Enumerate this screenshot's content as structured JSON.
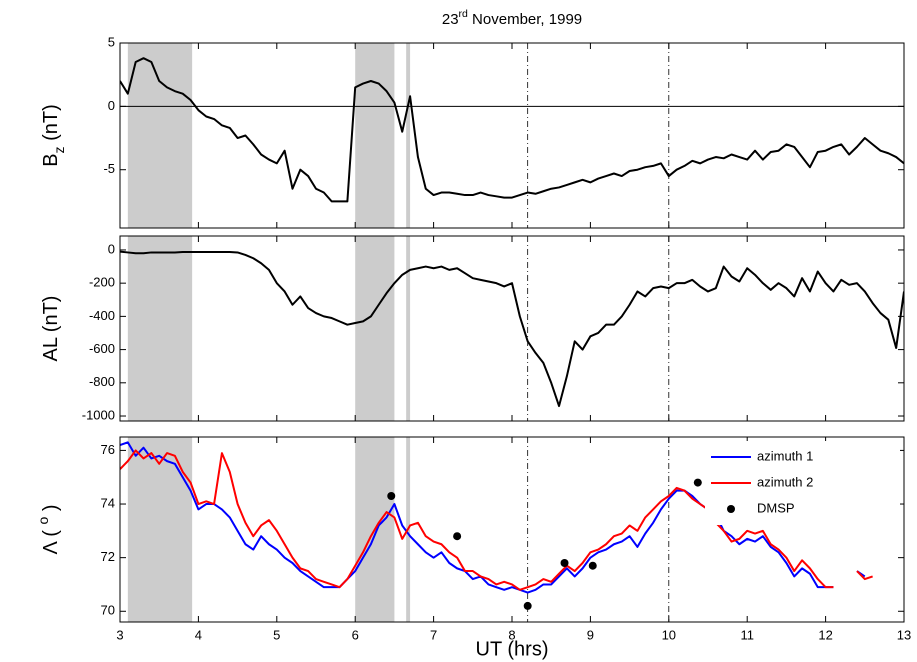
{
  "chart_data": [
    {
      "type": "line",
      "title": [
        {
          "text": "23"
        },
        {
          "text": "rd",
          "shift": "super"
        },
        {
          "text": " November, 1999"
        }
      ],
      "ylabel": [
        {
          "text": "B"
        },
        {
          "text": "z",
          "shift": "sub"
        },
        {
          "text": " (nT)"
        }
      ],
      "xlim": [
        3,
        13
      ],
      "xticks": [
        3,
        4,
        5,
        6,
        7,
        8,
        9,
        10,
        11,
        12,
        13
      ],
      "ylim": [
        -9.6,
        5
      ],
      "yticks": [
        -5,
        0,
        5
      ],
      "hline": 0,
      "shaded_intervals": [
        [
          3.1,
          3.92
        ],
        [
          6.0,
          6.5
        ],
        [
          6.65,
          6.7
        ]
      ],
      "vlines": [
        8.2,
        10.0
      ],
      "x": [
        3.0,
        3.1,
        3.2,
        3.3,
        3.4,
        3.5,
        3.6,
        3.7,
        3.8,
        3.9,
        4.0,
        4.1,
        4.2,
        4.3,
        4.4,
        4.5,
        4.6,
        4.7,
        4.8,
        4.9,
        5.0,
        5.1,
        5.2,
        5.3,
        5.4,
        5.5,
        5.6,
        5.7,
        5.8,
        5.9,
        6.0,
        6.1,
        6.2,
        6.3,
        6.4,
        6.5,
        6.6,
        6.7,
        6.8,
        6.9,
        7.0,
        7.1,
        7.2,
        7.3,
        7.4,
        7.5,
        7.6,
        7.7,
        7.8,
        7.9,
        8.0,
        8.1,
        8.2,
        8.3,
        8.4,
        8.5,
        8.6,
        8.7,
        8.8,
        8.9,
        9.0,
        9.1,
        9.2,
        9.3,
        9.4,
        9.5,
        9.6,
        9.7,
        9.8,
        9.9,
        10.0,
        10.1,
        10.2,
        10.3,
        10.4,
        10.5,
        10.6,
        10.7,
        10.8,
        10.9,
        11.0,
        11.1,
        11.2,
        11.3,
        11.4,
        11.5,
        11.6,
        11.7,
        11.8,
        11.9,
        12.0,
        12.1,
        12.2,
        12.3,
        12.4,
        12.5,
        12.6,
        12.7,
        12.8,
        12.9,
        13.0
      ],
      "series": [
        {
          "color": "#000000",
          "values": [
            2,
            1,
            3.5,
            3.8,
            3.5,
            2,
            1.5,
            1.2,
            1,
            0.5,
            -0.3,
            -0.8,
            -1,
            -1.5,
            -1.7,
            -2.5,
            -2.3,
            -3,
            -3.8,
            -4.2,
            -4.5,
            -3.5,
            -6.5,
            -5,
            -5.5,
            -6.5,
            -6.8,
            -7.5,
            -7.5,
            -7.5,
            1.5,
            1.8,
            2,
            1.8,
            1.2,
            0.3,
            -2,
            0.8,
            -4,
            -6.5,
            -7,
            -6.8,
            -6.8,
            -6.9,
            -7,
            -7,
            -6.8,
            -7,
            -7.1,
            -7.2,
            -7.2,
            -7,
            -6.8,
            -6.9,
            -6.7,
            -6.5,
            -6.4,
            -6.2,
            -6,
            -5.8,
            -6,
            -5.7,
            -5.5,
            -5.3,
            -5.5,
            -5.1,
            -5,
            -4.8,
            -4.7,
            -4.5,
            -5.5,
            -5,
            -4.7,
            -4.3,
            -4.5,
            -4.2,
            -4,
            -4.1,
            -3.8,
            -4,
            -4.2,
            -3.5,
            -4.2,
            -3.6,
            -3.5,
            -3,
            -3.2,
            -4,
            -4.8,
            -3.6,
            -3.5,
            -3.2,
            -3,
            -3.8,
            -3.2,
            -2.5,
            -3,
            -3.5,
            -3.7,
            -4,
            -4.5
          ]
        }
      ]
    },
    {
      "type": "line",
      "ylabel": [
        {
          "text": "AL (nT)"
        }
      ],
      "xlim": [
        3,
        13
      ],
      "xticks": [
        3,
        4,
        5,
        6,
        7,
        8,
        9,
        10,
        11,
        12,
        13
      ],
      "ylim": [
        -1030,
        84
      ],
      "yticks": [
        -1000,
        -800,
        -600,
        -400,
        -200,
        0
      ],
      "shaded_intervals": [
        [
          3.1,
          3.92
        ],
        [
          6.0,
          6.5
        ],
        [
          6.65,
          6.7
        ]
      ],
      "vlines": [
        8.2,
        10.0
      ],
      "x": [
        3.0,
        3.1,
        3.2,
        3.3,
        3.4,
        3.5,
        3.6,
        3.7,
        3.8,
        3.9,
        4.0,
        4.1,
        4.2,
        4.3,
        4.4,
        4.5,
        4.6,
        4.7,
        4.8,
        4.9,
        5.0,
        5.1,
        5.2,
        5.3,
        5.4,
        5.5,
        5.6,
        5.7,
        5.8,
        5.9,
        6.0,
        6.1,
        6.2,
        6.3,
        6.4,
        6.5,
        6.6,
        6.7,
        6.8,
        6.9,
        7.0,
        7.1,
        7.2,
        7.3,
        7.4,
        7.5,
        7.6,
        7.7,
        7.8,
        7.9,
        8.0,
        8.1,
        8.2,
        8.3,
        8.4,
        8.5,
        8.6,
        8.7,
        8.8,
        8.9,
        9.0,
        9.1,
        9.2,
        9.3,
        9.4,
        9.5,
        9.6,
        9.7,
        9.8,
        9.9,
        10.0,
        10.1,
        10.2,
        10.3,
        10.4,
        10.5,
        10.6,
        10.7,
        10.8,
        10.9,
        11.0,
        11.1,
        11.2,
        11.3,
        11.4,
        11.5,
        11.6,
        11.7,
        11.8,
        11.9,
        12.0,
        12.1,
        12.2,
        12.3,
        12.4,
        12.5,
        12.6,
        12.7,
        12.8,
        12.9,
        13.0
      ],
      "series": [
        {
          "color": "#000000",
          "values": [
            -10,
            -15,
            -20,
            -20,
            -15,
            -15,
            -15,
            -15,
            -12,
            -12,
            -12,
            -12,
            -12,
            -12,
            -12,
            -15,
            -30,
            -50,
            -80,
            -120,
            -200,
            -250,
            -330,
            -280,
            -350,
            -380,
            -400,
            -410,
            -430,
            -450,
            -440,
            -430,
            -400,
            -330,
            -260,
            -200,
            -150,
            -120,
            -110,
            -100,
            -110,
            -100,
            -120,
            -110,
            -140,
            -170,
            -180,
            -190,
            -200,
            -220,
            -200,
            -400,
            -550,
            -620,
            -680,
            -800,
            -940,
            -760,
            -550,
            -600,
            -520,
            -500,
            -450,
            -450,
            -400,
            -330,
            -250,
            -280,
            -230,
            -220,
            -230,
            -200,
            -200,
            -180,
            -220,
            -250,
            -230,
            -100,
            -160,
            -190,
            -110,
            -150,
            -200,
            -240,
            -200,
            -230,
            -280,
            -170,
            -250,
            -130,
            -200,
            -250,
            -180,
            -210,
            -200,
            -250,
            -320,
            -380,
            -420,
            -590,
            -250
          ]
        }
      ]
    },
    {
      "type": "line",
      "ylabel": [
        {
          "text": "Λ ( "
        },
        {
          "text": "o",
          "shift": "super"
        },
        {
          "text": " )"
        }
      ],
      "xlabel": "UT (hrs)",
      "xlim": [
        3,
        13
      ],
      "xticks": [
        3,
        4,
        5,
        6,
        7,
        8,
        9,
        10,
        11,
        12,
        13
      ],
      "ylim": [
        69.6,
        76.5
      ],
      "yticks": [
        70,
        72,
        74,
        76
      ],
      "shaded_intervals": [
        [
          3.1,
          3.92
        ],
        [
          6.0,
          6.5
        ],
        [
          6.65,
          6.7
        ]
      ],
      "vlines": [
        8.2,
        10.0
      ],
      "legend": "upper right",
      "x": [
        3.0,
        3.1,
        3.2,
        3.3,
        3.4,
        3.5,
        3.6,
        3.7,
        3.8,
        3.9,
        4.0,
        4.1,
        4.2,
        4.3,
        4.4,
        4.5,
        4.6,
        4.7,
        4.8,
        4.9,
        5.0,
        5.1,
        5.2,
        5.3,
        5.4,
        5.5,
        5.6,
        5.7,
        5.8,
        5.9,
        6.0,
        6.1,
        6.2,
        6.3,
        6.4,
        6.5,
        6.6,
        6.7,
        6.8,
        6.9,
        7.0,
        7.1,
        7.2,
        7.3,
        7.4,
        7.5,
        7.6,
        7.7,
        7.8,
        7.9,
        8.0,
        8.1,
        8.2,
        8.3,
        8.4,
        8.5,
        8.6,
        8.7,
        8.8,
        8.9,
        9.0,
        9.1,
        9.2,
        9.3,
        9.4,
        9.5,
        9.6,
        9.7,
        9.8,
        9.9,
        10.0,
        10.1,
        10.2,
        10.3,
        10.4,
        10.5,
        10.6,
        10.7,
        10.8,
        10.9,
        11.0,
        11.1,
        11.2,
        11.3,
        11.4,
        11.5,
        11.6,
        11.7,
        11.8,
        11.9,
        12.0,
        12.1,
        12.2,
        12.3,
        12.4,
        12.5,
        12.6,
        12.7,
        12.8,
        12.9,
        13.0
      ],
      "series": [
        {
          "name": "azimuth 1",
          "color": "#0000ff",
          "values": [
            76.2,
            76.3,
            75.8,
            76.1,
            75.7,
            75.8,
            75.6,
            75.5,
            75,
            74.5,
            73.8,
            74,
            74,
            73.8,
            73.5,
            73,
            72.5,
            72.3,
            72.8,
            72.5,
            72.3,
            72,
            71.8,
            71.5,
            71.3,
            71.1,
            70.9,
            70.9,
            70.9,
            71.2,
            71.5,
            72,
            72.5,
            73.2,
            73.5,
            74,
            73.2,
            72.8,
            72.5,
            72.2,
            72,
            72.2,
            71.8,
            71.6,
            71.5,
            71.2,
            71.3,
            71,
            70.9,
            70.8,
            70.9,
            70.8,
            70.7,
            70.8,
            71,
            71,
            71.3,
            71.6,
            71.3,
            71.6,
            72,
            72.2,
            72.3,
            72.5,
            72.6,
            72.8,
            72.4,
            72.9,
            73.3,
            73.8,
            74.2,
            74.5,
            74.5,
            74.3,
            74,
            73.8,
            73.6,
            73,
            72.8,
            72.5,
            72.7,
            72.6,
            72.8,
            72.4,
            72.2,
            71.8,
            71.3,
            71.6,
            71.4,
            70.9,
            70.9,
            70.9,
            null,
            null,
            71.5,
            71.3,
            null,
            null,
            null,
            null,
            null
          ]
        },
        {
          "name": "azimuth 2",
          "color": "#ff0000",
          "values": [
            75.3,
            75.6,
            76,
            75.7,
            75.9,
            75.5,
            75.9,
            75.8,
            75.2,
            74.8,
            74,
            74.1,
            74,
            75.9,
            75.2,
            74,
            73.3,
            72.8,
            73.2,
            73.4,
            73,
            72.5,
            72,
            71.6,
            71.5,
            71.2,
            71.1,
            71,
            70.9,
            71.2,
            71.7,
            72.2,
            72.8,
            73.3,
            73.7,
            73.5,
            72.7,
            73.2,
            73.3,
            72.8,
            72.6,
            72.5,
            72.2,
            72,
            71.5,
            71.5,
            71.3,
            71.2,
            71,
            71.1,
            71,
            70.8,
            70.9,
            71,
            71.2,
            71.1,
            71.4,
            71.7,
            71.5,
            71.8,
            72.2,
            72.3,
            72.5,
            72.8,
            72.9,
            73.2,
            73,
            73.5,
            73.8,
            74.1,
            74.3,
            74.6,
            74.5,
            74.2,
            74,
            73.8,
            73.3,
            73,
            72.6,
            72.7,
            73,
            72.9,
            73,
            72.5,
            72.3,
            72,
            71.5,
            71.9,
            71.6,
            71.2,
            70.9,
            70.9,
            null,
            null,
            71.5,
            71.2,
            71.3,
            null,
            null,
            null,
            null
          ]
        },
        {
          "name": "DMSP",
          "color": "#000000",
          "marker": "dot",
          "x": [
            6.46,
            7.3,
            8.2,
            8.67,
            9.03,
            10.37
          ],
          "values": [
            74.3,
            72.8,
            70.2,
            71.8,
            71.7,
            74.8
          ]
        }
      ]
    }
  ]
}
